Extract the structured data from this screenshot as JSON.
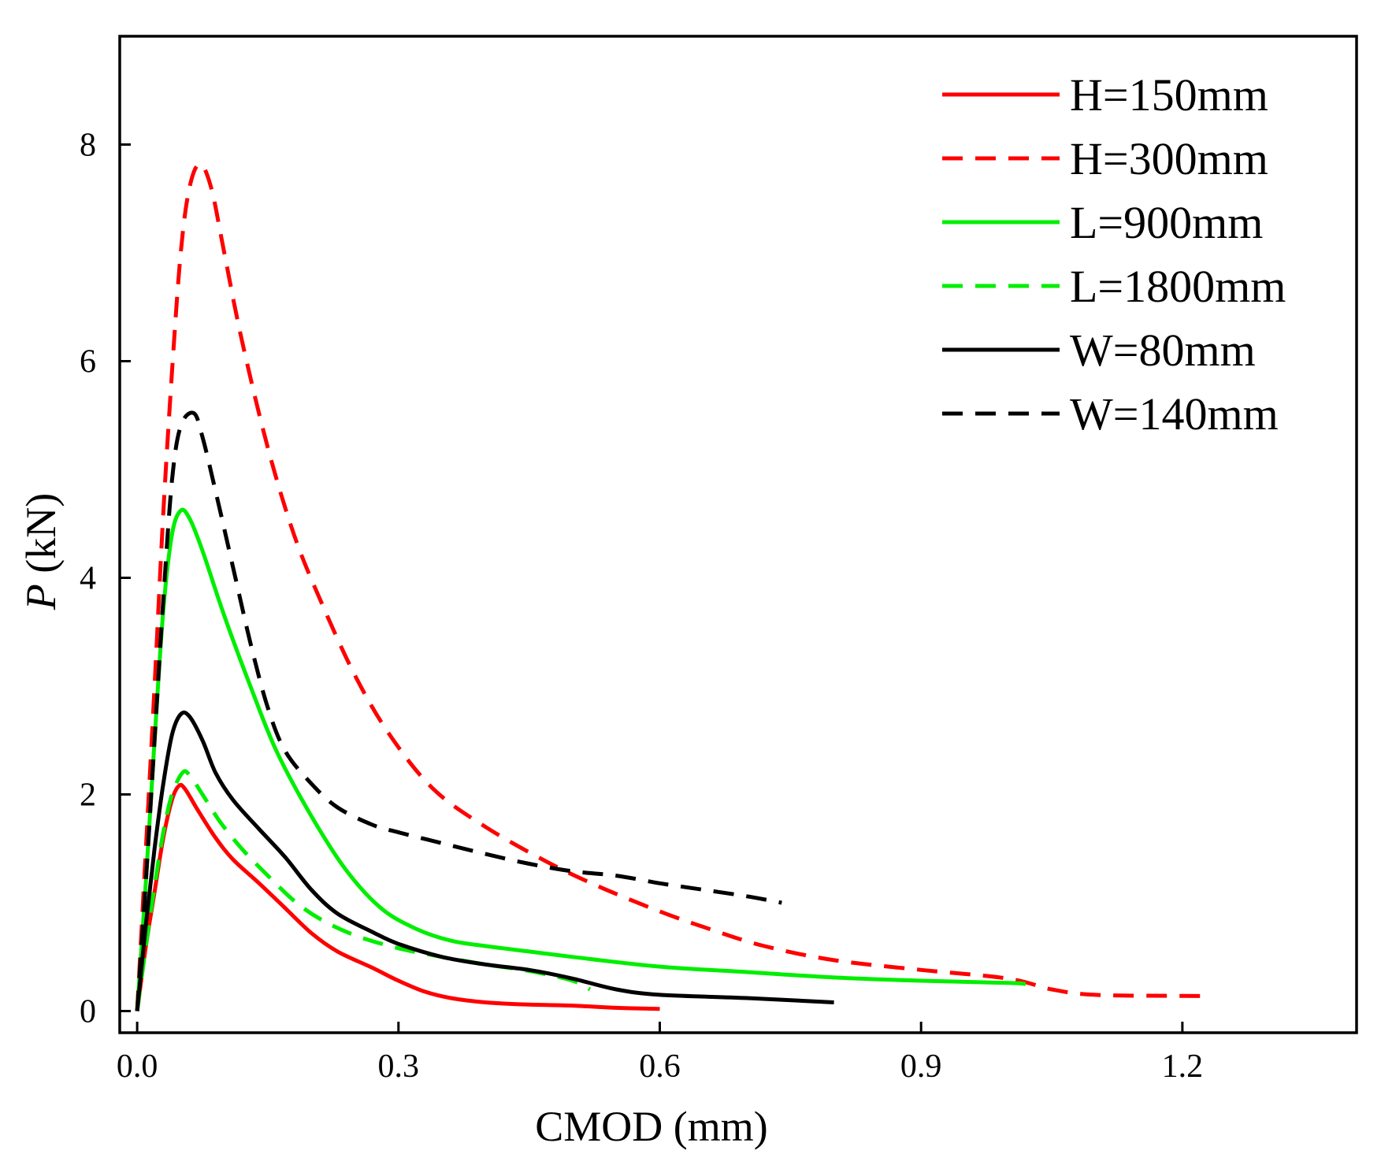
{
  "chart_data": {
    "type": "line",
    "xlabel": "CMOD (mm)",
    "ylabel_var": "P",
    "ylabel_unit": " (kN)",
    "xlim": [
      -0.02,
      1.4
    ],
    "ylim": [
      -0.2,
      9.0
    ],
    "xticks": [
      0.0,
      0.3,
      0.6,
      0.9,
      1.2
    ],
    "xtick_labels": [
      "0.0",
      "0.3",
      "0.6",
      "0.9",
      "1.2"
    ],
    "yticks": [
      0,
      2,
      4,
      6,
      8
    ],
    "ytick_labels": [
      "0",
      "2",
      "4",
      "6",
      "8"
    ],
    "grid": false,
    "legend_position": "top-right",
    "series": [
      {
        "name": "H=150mm",
        "color": "#ff0000",
        "dash": "solid",
        "points": [
          [
            0,
            0
          ],
          [
            0.01,
            0.6
          ],
          [
            0.02,
            1.1
          ],
          [
            0.03,
            1.6
          ],
          [
            0.04,
            1.95
          ],
          [
            0.048,
            2.08
          ],
          [
            0.055,
            2.05
          ],
          [
            0.07,
            1.85
          ],
          [
            0.09,
            1.6
          ],
          [
            0.11,
            1.4
          ],
          [
            0.14,
            1.18
          ],
          [
            0.17,
            0.95
          ],
          [
            0.2,
            0.72
          ],
          [
            0.23,
            0.55
          ],
          [
            0.27,
            0.4
          ],
          [
            0.3,
            0.28
          ],
          [
            0.33,
            0.18
          ],
          [
            0.36,
            0.12
          ],
          [
            0.4,
            0.08
          ],
          [
            0.45,
            0.06
          ],
          [
            0.5,
            0.05
          ],
          [
            0.55,
            0.03
          ],
          [
            0.6,
            0.02
          ]
        ]
      },
      {
        "name": "H=300mm",
        "color": "#ff0000",
        "dash": "dashed",
        "points": [
          [
            0,
            0
          ],
          [
            0.01,
            1.5
          ],
          [
            0.02,
            3.0
          ],
          [
            0.03,
            4.6
          ],
          [
            0.04,
            5.9
          ],
          [
            0.05,
            7.0
          ],
          [
            0.06,
            7.6
          ],
          [
            0.072,
            7.82
          ],
          [
            0.085,
            7.6
          ],
          [
            0.1,
            7.0
          ],
          [
            0.12,
            6.2
          ],
          [
            0.15,
            5.2
          ],
          [
            0.18,
            4.4
          ],
          [
            0.21,
            3.8
          ],
          [
            0.25,
            3.1
          ],
          [
            0.29,
            2.55
          ],
          [
            0.34,
            2.05
          ],
          [
            0.4,
            1.7
          ],
          [
            0.47,
            1.38
          ],
          [
            0.53,
            1.15
          ],
          [
            0.6,
            0.92
          ],
          [
            0.66,
            0.75
          ],
          [
            0.72,
            0.6
          ],
          [
            0.8,
            0.47
          ],
          [
            0.9,
            0.38
          ],
          [
            1.0,
            0.3
          ],
          [
            1.05,
            0.2
          ],
          [
            1.1,
            0.15
          ],
          [
            1.2,
            0.14
          ],
          [
            1.23,
            0.14
          ]
        ]
      },
      {
        "name": "L=900mm",
        "color": "#00ee00",
        "dash": "solid",
        "points": [
          [
            0,
            0
          ],
          [
            0.01,
            1.2
          ],
          [
            0.02,
            2.5
          ],
          [
            0.03,
            3.7
          ],
          [
            0.04,
            4.4
          ],
          [
            0.05,
            4.62
          ],
          [
            0.06,
            4.55
          ],
          [
            0.075,
            4.25
          ],
          [
            0.1,
            3.65
          ],
          [
            0.13,
            3.0
          ],
          [
            0.16,
            2.4
          ],
          [
            0.2,
            1.8
          ],
          [
            0.24,
            1.3
          ],
          [
            0.28,
            0.95
          ],
          [
            0.32,
            0.76
          ],
          [
            0.36,
            0.65
          ],
          [
            0.4,
            0.6
          ],
          [
            0.45,
            0.55
          ],
          [
            0.5,
            0.5
          ],
          [
            0.6,
            0.41
          ],
          [
            0.7,
            0.36
          ],
          [
            0.8,
            0.31
          ],
          [
            0.9,
            0.28
          ],
          [
            1.0,
            0.26
          ],
          [
            1.02,
            0.25
          ]
        ]
      },
      {
        "name": "L=1800mm",
        "color": "#00ee00",
        "dash": "dashed",
        "points": [
          [
            0,
            0
          ],
          [
            0.01,
            0.6
          ],
          [
            0.02,
            1.15
          ],
          [
            0.03,
            1.65
          ],
          [
            0.04,
            2.0
          ],
          [
            0.052,
            2.2
          ],
          [
            0.06,
            2.18
          ],
          [
            0.075,
            2.0
          ],
          [
            0.095,
            1.75
          ],
          [
            0.12,
            1.5
          ],
          [
            0.15,
            1.25
          ],
          [
            0.18,
            1.02
          ],
          [
            0.21,
            0.85
          ],
          [
            0.25,
            0.7
          ],
          [
            0.3,
            0.58
          ],
          [
            0.35,
            0.5
          ],
          [
            0.4,
            0.43
          ],
          [
            0.45,
            0.37
          ],
          [
            0.5,
            0.28
          ],
          [
            0.52,
            0.2
          ]
        ]
      },
      {
        "name": "W=80mm",
        "color": "#000000",
        "dash": "solid",
        "points": [
          [
            0,
            0
          ],
          [
            0.01,
            0.8
          ],
          [
            0.02,
            1.5
          ],
          [
            0.03,
            2.1
          ],
          [
            0.04,
            2.55
          ],
          [
            0.05,
            2.74
          ],
          [
            0.06,
            2.72
          ],
          [
            0.075,
            2.5
          ],
          [
            0.09,
            2.2
          ],
          [
            0.11,
            1.95
          ],
          [
            0.14,
            1.68
          ],
          [
            0.17,
            1.42
          ],
          [
            0.2,
            1.12
          ],
          [
            0.23,
            0.9
          ],
          [
            0.27,
            0.73
          ],
          [
            0.3,
            0.62
          ],
          [
            0.35,
            0.5
          ],
          [
            0.4,
            0.43
          ],
          [
            0.45,
            0.38
          ],
          [
            0.5,
            0.3
          ],
          [
            0.55,
            0.2
          ],
          [
            0.6,
            0.15
          ],
          [
            0.7,
            0.12
          ],
          [
            0.8,
            0.08
          ]
        ]
      },
      {
        "name": "W=140mm",
        "color": "#000000",
        "dash": "dashed",
        "points": [
          [
            0,
            0
          ],
          [
            0.01,
            1.2
          ],
          [
            0.02,
            2.5
          ],
          [
            0.03,
            3.8
          ],
          [
            0.04,
            4.9
          ],
          [
            0.05,
            5.4
          ],
          [
            0.065,
            5.52
          ],
          [
            0.075,
            5.3
          ],
          [
            0.09,
            4.8
          ],
          [
            0.11,
            4.1
          ],
          [
            0.13,
            3.4
          ],
          [
            0.15,
            2.8
          ],
          [
            0.17,
            2.4
          ],
          [
            0.2,
            2.1
          ],
          [
            0.23,
            1.88
          ],
          [
            0.27,
            1.72
          ],
          [
            0.3,
            1.65
          ],
          [
            0.35,
            1.55
          ],
          [
            0.4,
            1.45
          ],
          [
            0.45,
            1.36
          ],
          [
            0.5,
            1.29
          ],
          [
            0.55,
            1.25
          ],
          [
            0.6,
            1.18
          ],
          [
            0.65,
            1.12
          ],
          [
            0.7,
            1.06
          ],
          [
            0.74,
            1.0
          ]
        ]
      }
    ]
  }
}
